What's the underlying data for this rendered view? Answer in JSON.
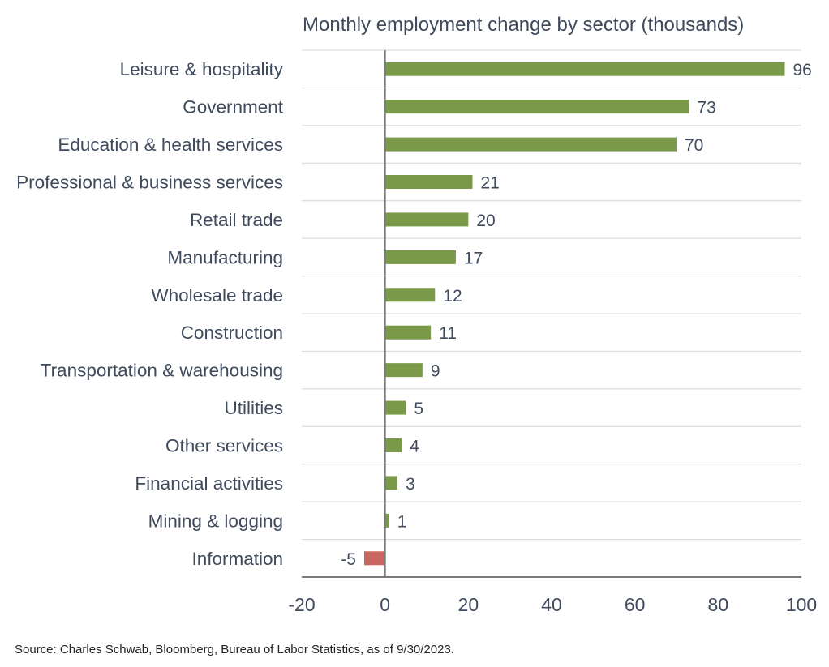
{
  "chart_data": {
    "type": "bar",
    "orientation": "horizontal",
    "title": "Monthly employment change by sector (thousands)",
    "xlabel": "",
    "ylabel": "",
    "xlim": [
      -20,
      100
    ],
    "xticks": [
      -20,
      0,
      20,
      40,
      60,
      80,
      100
    ],
    "categories": [
      "Leisure & hospitality",
      "Government",
      "Education & health services",
      "Professional & business services",
      "Retail trade",
      "Manufacturing",
      "Wholesale trade",
      "Construction",
      "Transportation & warehousing",
      "Utilities",
      "Other services",
      "Financial activities",
      "Mining & logging",
      "Information"
    ],
    "values": [
      96,
      73,
      70,
      21,
      20,
      17,
      12,
      11,
      9,
      5,
      4,
      3,
      1,
      -5
    ],
    "colors": {
      "positive": "#7a9a4a",
      "negative": "#c8675f",
      "grid": "#d4d4d4",
      "axis": "#7a7a7a",
      "text": "#3f4a5c"
    },
    "grid": true
  },
  "footer": {
    "source": "Source: Charles Schwab, Bloomberg, Bureau of Labor Statistics, as of 9/30/2023."
  }
}
